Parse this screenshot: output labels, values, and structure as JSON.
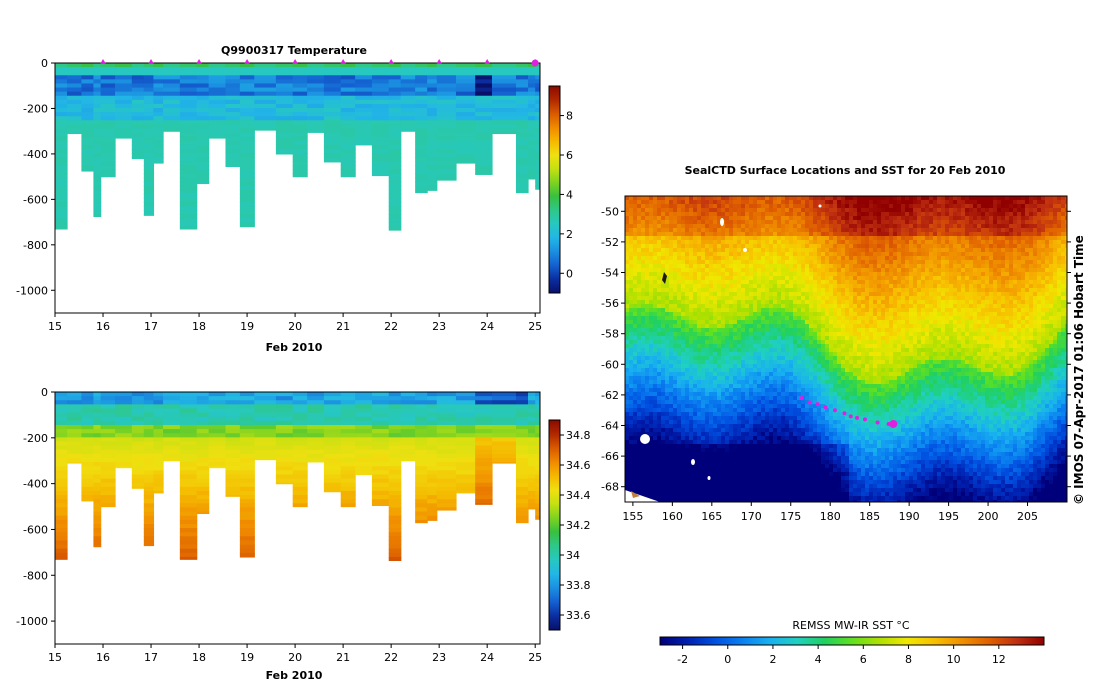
{
  "palettes": {
    "ts_colors": [
      "#08106a",
      "#0b2ea0",
      "#1460d0",
      "#1b8fe0",
      "#22b6e6",
      "#27c8c0",
      "#2ec88a",
      "#38c040",
      "#7ed321",
      "#c4e012",
      "#f0e010",
      "#f5b800",
      "#f08a00",
      "#d85a00",
      "#b02800",
      "#8a0a00"
    ],
    "map_colors": [
      "#00007a",
      "#0020b0",
      "#0050e0",
      "#0a80f0",
      "#18b0f0",
      "#20d0c0",
      "#20d060",
      "#60e020",
      "#b0e000",
      "#f0e800",
      "#f8c000",
      "#f09000",
      "#e06000",
      "#c03010",
      "#900000"
    ],
    "seal_marker": "#e020e0",
    "land": "#ffffff",
    "ice_mask": "#ffffff"
  },
  "chart_data": [
    {
      "id": "temperature",
      "type": "heatmap",
      "title": "Q9900317  Temperature",
      "xlabel": "Feb 2010",
      "ylabel": "",
      "xlim": [
        15,
        25.1
      ],
      "ylim": [
        -1100,
        0
      ],
      "x_ticks": [
        "15",
        "16",
        "17",
        "18",
        "19",
        "20",
        "21",
        "22",
        "23",
        "24",
        "25"
      ],
      "y_ticks": [
        "0",
        "-200",
        "-400",
        "-600",
        "-800",
        "-1000"
      ],
      "colorbar": {
        "min": -1,
        "max": 9.5,
        "ticks": [
          "8",
          "6",
          "4",
          "2",
          "0"
        ]
      },
      "profile_markers_day": [
        16,
        17,
        18,
        19,
        20,
        21,
        22,
        23,
        24,
        25
      ],
      "profiles": [
        {
          "t0": 15.0,
          "t1": 15.25,
          "maxdepth": 730
        },
        {
          "t0": 15.25,
          "t1": 15.55,
          "maxdepth": 310
        },
        {
          "t0": 15.55,
          "t1": 15.8,
          "maxdepth": 475
        },
        {
          "t0": 15.8,
          "t1": 15.95,
          "maxdepth": 675
        },
        {
          "t0": 15.95,
          "t1": 16.25,
          "maxdepth": 500
        },
        {
          "t0": 16.25,
          "t1": 16.6,
          "maxdepth": 330
        },
        {
          "t0": 16.6,
          "t1": 16.85,
          "maxdepth": 420
        },
        {
          "t0": 16.85,
          "t1": 17.05,
          "maxdepth": 670
        },
        {
          "t0": 17.05,
          "t1": 17.25,
          "maxdepth": 440
        },
        {
          "t0": 17.25,
          "t1": 17.6,
          "maxdepth": 300
        },
        {
          "t0": 17.6,
          "t1": 17.95,
          "maxdepth": 730
        },
        {
          "t0": 17.95,
          "t1": 18.2,
          "maxdepth": 530
        },
        {
          "t0": 18.2,
          "t1": 18.55,
          "maxdepth": 330
        },
        {
          "t0": 18.55,
          "t1": 18.85,
          "maxdepth": 455
        },
        {
          "t0": 18.85,
          "t1": 19.15,
          "maxdepth": 720
        },
        {
          "t0": 19.15,
          "t1": 19.6,
          "maxdepth": 295
        },
        {
          "t0": 19.6,
          "t1": 19.95,
          "maxdepth": 400
        },
        {
          "t0": 19.95,
          "t1": 20.25,
          "maxdepth": 500
        },
        {
          "t0": 20.25,
          "t1": 20.6,
          "maxdepth": 305
        },
        {
          "t0": 20.6,
          "t1": 20.95,
          "maxdepth": 435
        },
        {
          "t0": 20.95,
          "t1": 21.25,
          "maxdepth": 500
        },
        {
          "t0": 21.25,
          "t1": 21.6,
          "maxdepth": 360
        },
        {
          "t0": 21.6,
          "t1": 21.95,
          "maxdepth": 495
        },
        {
          "t0": 21.95,
          "t1": 22.2,
          "maxdepth": 735
        },
        {
          "t0": 22.2,
          "t1": 22.5,
          "maxdepth": 300
        },
        {
          "t0": 22.5,
          "t1": 22.75,
          "maxdepth": 570
        },
        {
          "t0": 22.75,
          "t1": 22.95,
          "maxdepth": 560
        },
        {
          "t0": 22.95,
          "t1": 23.35,
          "maxdepth": 515
        },
        {
          "t0": 23.35,
          "t1": 23.75,
          "maxdepth": 440
        },
        {
          "t0": 23.75,
          "t1": 24.1,
          "maxdepth": 490
        },
        {
          "t0": 24.1,
          "t1": 24.6,
          "maxdepth": 310
        },
        {
          "t0": 24.6,
          "t1": 24.85,
          "maxdepth": 570
        },
        {
          "t0": 24.85,
          "t1": 25.0,
          "maxdepth": 510
        },
        {
          "t0": 25.0,
          "t1": 25.1,
          "maxdepth": 555
        }
      ]
    },
    {
      "id": "salinity",
      "type": "heatmap",
      "title": "",
      "xlabel": "Feb 2010",
      "ylabel": "",
      "xlim": [
        15,
        25.1
      ],
      "ylim": [
        -1100,
        0
      ],
      "x_ticks": [
        "15",
        "16",
        "17",
        "18",
        "19",
        "20",
        "21",
        "22",
        "23",
        "24",
        "25"
      ],
      "y_ticks": [
        "0",
        "-200",
        "-400",
        "-600",
        "-800",
        "-1000"
      ],
      "colorbar": {
        "min": 33.5,
        "max": 34.9,
        "ticks": [
          "34.8",
          "34.6",
          "34.4",
          "34.2",
          "34",
          "33.8",
          "33.6"
        ]
      }
    },
    {
      "id": "sst_map",
      "type": "heatmap",
      "title": "SealCTD Surface Locations and SST for 20 Feb 2010",
      "xlabel": "",
      "ylabel": "",
      "xlim": [
        154,
        210
      ],
      "ylim": [
        -69,
        -49
      ],
      "x_ticks": [
        "155",
        "160",
        "165",
        "170",
        "175",
        "180",
        "185",
        "190",
        "195",
        "200",
        "205"
      ],
      "y_ticks": [
        "-50",
        "-52",
        "-54",
        "-56",
        "-58",
        "-60",
        "-62",
        "-64",
        "-66",
        "-68"
      ],
      "colorbar": {
        "label": "REMSS MW-IR SST °C",
        "min": -3,
        "max": 14,
        "ticks": [
          "-2",
          "0",
          "2",
          "4",
          "6",
          "8",
          "10",
          "12"
        ]
      },
      "seal_track": [
        [
          176.4,
          -62.2
        ],
        [
          177.4,
          -62.5
        ],
        [
          178.4,
          -62.6
        ],
        [
          179.4,
          -62.8
        ],
        [
          180.6,
          -63.0
        ],
        [
          181.8,
          -63.2
        ],
        [
          182.6,
          -63.4
        ],
        [
          183.4,
          -63.5
        ],
        [
          184.4,
          -63.6
        ],
        [
          186.0,
          -63.8
        ],
        [
          187.4,
          -63.9
        ]
      ],
      "seal_current": [
        188.0,
        -63.9
      ],
      "watermark": "© IMOS 07-Apr-2017 01:06 Hobart Time"
    }
  ]
}
